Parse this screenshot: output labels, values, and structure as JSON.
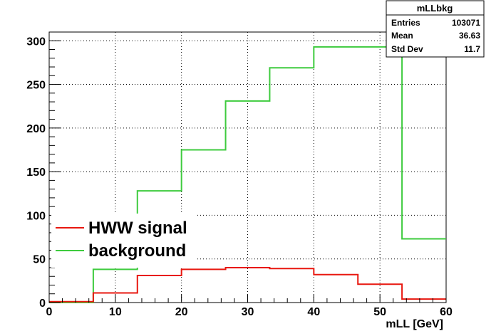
{
  "chart_data": {
    "type": "line",
    "title": "",
    "xlabel": "mLL [GeV]",
    "ylabel": "",
    "xlim": [
      0,
      60
    ],
    "ylim": [
      0,
      310
    ],
    "grid": true,
    "x_ticks": [
      0,
      10,
      20,
      30,
      40,
      50,
      60
    ],
    "y_ticks": [
      0,
      50,
      100,
      150,
      200,
      250,
      300
    ],
    "bin_edges": [
      0,
      6.667,
      13.333,
      20,
      26.667,
      33.333,
      40,
      46.667,
      53.333,
      60
    ],
    "series": [
      {
        "name": "HWW signal",
        "color": "#e8170f",
        "values": [
          1,
          11,
          31,
          38,
          40,
          39,
          32,
          21,
          4
        ]
      },
      {
        "name": "background",
        "color": "#3ecb3e",
        "values": [
          0,
          38,
          128,
          175,
          231,
          269,
          293,
          293,
          73
        ]
      }
    ],
    "legend": {
      "position": "left-middle",
      "entries": [
        "HWW signal",
        "background"
      ]
    },
    "stats_box": {
      "title": "mLLbkg",
      "rows": [
        {
          "label": "Entries",
          "value": "103071"
        },
        {
          "label": "Mean",
          "value": "36.63"
        },
        {
          "label": "Std Dev",
          "value": "11.7"
        }
      ]
    }
  }
}
